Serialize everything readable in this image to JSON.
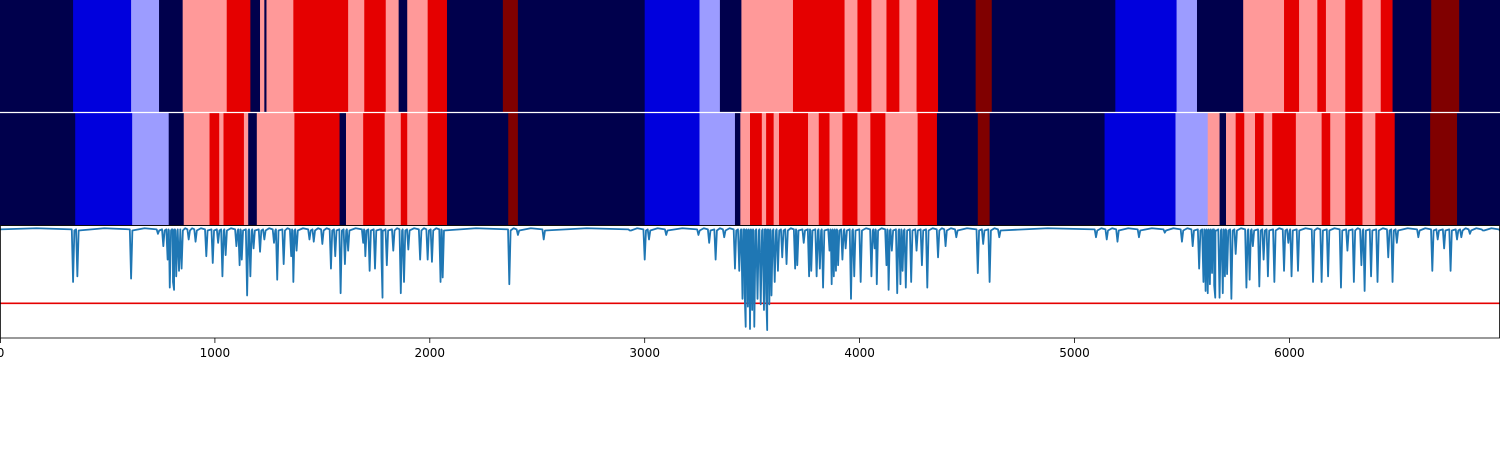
{
  "chart_data": {
    "type": "heatmap",
    "xlim": [
      0,
      6980
    ],
    "x_ticks": [
      0,
      1000,
      2000,
      3000,
      4000,
      5000,
      6000
    ],
    "x_tick_labels": [
      "0",
      "1000",
      "2000",
      "3000",
      "4000",
      "5000",
      "6000"
    ],
    "palette": {
      "0": "#00004c",
      "1": "#0000dd",
      "2": "#9c9cff",
      "3": "#ff9999",
      "4": "#e50000",
      "5": "#800000"
    },
    "segmentation_rows": [
      {
        "segments": [
          [
            0,
            340,
            0
          ],
          [
            340,
            610,
            1
          ],
          [
            610,
            740,
            2
          ],
          [
            740,
            850,
            0
          ],
          [
            850,
            1055,
            3
          ],
          [
            1055,
            1165,
            4
          ],
          [
            1165,
            1210,
            0
          ],
          [
            1210,
            1230,
            3
          ],
          [
            1230,
            1240,
            0
          ],
          [
            1240,
            1365,
            3
          ],
          [
            1365,
            1620,
            4
          ],
          [
            1620,
            1695,
            3
          ],
          [
            1695,
            1795,
            4
          ],
          [
            1795,
            1855,
            3
          ],
          [
            1855,
            1895,
            0
          ],
          [
            1895,
            1990,
            3
          ],
          [
            1990,
            2080,
            4
          ],
          [
            2080,
            2340,
            0
          ],
          [
            2340,
            2410,
            5
          ],
          [
            2410,
            3000,
            0
          ],
          [
            3000,
            3255,
            1
          ],
          [
            3255,
            3350,
            2
          ],
          [
            3350,
            3450,
            0
          ],
          [
            3450,
            3690,
            3
          ],
          [
            3690,
            3930,
            4
          ],
          [
            3930,
            3990,
            3
          ],
          [
            3990,
            4055,
            4
          ],
          [
            4055,
            4125,
            3
          ],
          [
            4125,
            4185,
            4
          ],
          [
            4185,
            4265,
            3
          ],
          [
            4265,
            4365,
            4
          ],
          [
            4365,
            4540,
            0
          ],
          [
            4540,
            4615,
            5
          ],
          [
            4615,
            5190,
            0
          ],
          [
            5190,
            5475,
            1
          ],
          [
            5475,
            5570,
            2
          ],
          [
            5570,
            5785,
            0
          ],
          [
            5785,
            5975,
            3
          ],
          [
            5975,
            6045,
            4
          ],
          [
            6045,
            6130,
            3
          ],
          [
            6130,
            6170,
            4
          ],
          [
            6170,
            6260,
            3
          ],
          [
            6260,
            6340,
            4
          ],
          [
            6340,
            6425,
            3
          ],
          [
            6425,
            6480,
            4
          ],
          [
            6480,
            6660,
            0
          ],
          [
            6660,
            6790,
            5
          ],
          [
            6790,
            6980,
            0
          ]
        ]
      },
      {
        "segments": [
          [
            0,
            350,
            0
          ],
          [
            350,
            615,
            1
          ],
          [
            615,
            785,
            2
          ],
          [
            785,
            855,
            0
          ],
          [
            855,
            975,
            3
          ],
          [
            975,
            1020,
            4
          ],
          [
            1020,
            1040,
            3
          ],
          [
            1040,
            1135,
            4
          ],
          [
            1135,
            1155,
            3
          ],
          [
            1155,
            1195,
            0
          ],
          [
            1195,
            1370,
            3
          ],
          [
            1370,
            1580,
            4
          ],
          [
            1580,
            1610,
            0
          ],
          [
            1610,
            1690,
            3
          ],
          [
            1690,
            1790,
            4
          ],
          [
            1790,
            1865,
            3
          ],
          [
            1865,
            1895,
            4
          ],
          [
            1895,
            1990,
            3
          ],
          [
            1990,
            2080,
            4
          ],
          [
            2080,
            2365,
            0
          ],
          [
            2365,
            2410,
            5
          ],
          [
            2410,
            3000,
            0
          ],
          [
            3000,
            3255,
            1
          ],
          [
            3255,
            3420,
            2
          ],
          [
            3420,
            3445,
            0
          ],
          [
            3445,
            3490,
            3
          ],
          [
            3490,
            3545,
            4
          ],
          [
            3545,
            3565,
            3
          ],
          [
            3565,
            3600,
            4
          ],
          [
            3600,
            3625,
            3
          ],
          [
            3625,
            3760,
            4
          ],
          [
            3760,
            3810,
            3
          ],
          [
            3810,
            3860,
            4
          ],
          [
            3860,
            3920,
            3
          ],
          [
            3920,
            3990,
            4
          ],
          [
            3990,
            4050,
            3
          ],
          [
            4050,
            4120,
            4
          ],
          [
            4120,
            4270,
            3
          ],
          [
            4270,
            4360,
            4
          ],
          [
            4360,
            4550,
            0
          ],
          [
            4550,
            4605,
            5
          ],
          [
            4605,
            5140,
            0
          ],
          [
            5140,
            5470,
            1
          ],
          [
            5470,
            5620,
            2
          ],
          [
            5620,
            5675,
            3
          ],
          [
            5675,
            5705,
            0
          ],
          [
            5705,
            5750,
            3
          ],
          [
            5750,
            5790,
            4
          ],
          [
            5790,
            5840,
            3
          ],
          [
            5840,
            5880,
            4
          ],
          [
            5880,
            5920,
            3
          ],
          [
            5920,
            6030,
            4
          ],
          [
            6030,
            6150,
            3
          ],
          [
            6150,
            6190,
            4
          ],
          [
            6190,
            6260,
            3
          ],
          [
            6260,
            6340,
            4
          ],
          [
            6340,
            6400,
            3
          ],
          [
            6400,
            6490,
            4
          ],
          [
            6490,
            6655,
            0
          ],
          [
            6655,
            6780,
            5
          ],
          [
            6780,
            6980,
            0
          ]
        ]
      }
    ],
    "line": {
      "color": "#1f77b4",
      "ylim": [
        0,
        1
      ],
      "threshold": 0.31,
      "threshold_color": "#e50000",
      "baseline_dips": [
        [
          340,
          0.5
        ],
        [
          360,
          0.55
        ],
        [
          610,
          0.53
        ],
        [
          735,
          0.93
        ],
        [
          760,
          0.82
        ],
        [
          780,
          0.7
        ],
        [
          790,
          0.45
        ],
        [
          805,
          0.5
        ],
        [
          810,
          0.43
        ],
        [
          820,
          0.55
        ],
        [
          833,
          0.6
        ],
        [
          845,
          0.62
        ],
        [
          878,
          0.88
        ],
        [
          910,
          0.86
        ],
        [
          960,
          0.73
        ],
        [
          990,
          0.67
        ],
        [
          1015,
          0.85
        ],
        [
          1035,
          0.55
        ],
        [
          1050,
          0.74
        ],
        [
          1100,
          0.82
        ],
        [
          1115,
          0.65
        ],
        [
          1125,
          0.7
        ],
        [
          1150,
          0.38
        ],
        [
          1165,
          0.55
        ],
        [
          1180,
          0.8
        ],
        [
          1210,
          0.77
        ],
        [
          1230,
          0.88
        ],
        [
          1275,
          0.85
        ],
        [
          1290,
          0.52
        ],
        [
          1320,
          0.66
        ],
        [
          1355,
          0.73
        ],
        [
          1365,
          0.5
        ],
        [
          1380,
          0.78
        ],
        [
          1440,
          0.88
        ],
        [
          1460,
          0.86
        ],
        [
          1500,
          0.84
        ],
        [
          1540,
          0.62
        ],
        [
          1560,
          0.73
        ],
        [
          1585,
          0.4
        ],
        [
          1605,
          0.66
        ],
        [
          1620,
          0.78
        ],
        [
          1690,
          0.85
        ],
        [
          1700,
          0.73
        ],
        [
          1720,
          0.6
        ],
        [
          1745,
          0.62
        ],
        [
          1775,
          0.72
        ],
        [
          1780,
          0.36
        ],
        [
          1800,
          0.65
        ],
        [
          1830,
          0.78
        ],
        [
          1865,
          0.4
        ],
        [
          1880,
          0.5
        ],
        [
          1900,
          0.79
        ],
        [
          1955,
          0.7
        ],
        [
          1990,
          0.7
        ],
        [
          2010,
          0.68
        ],
        [
          2050,
          0.5
        ],
        [
          2060,
          0.54
        ],
        [
          2370,
          0.48
        ],
        [
          2410,
          0.92
        ],
        [
          2530,
          0.88
        ],
        [
          2930,
          0.96
        ],
        [
          3000,
          0.7
        ],
        [
          3020,
          0.88
        ],
        [
          3100,
          0.92
        ],
        [
          3250,
          0.92
        ],
        [
          3300,
          0.85
        ],
        [
          3330,
          0.7
        ],
        [
          3370,
          0.9
        ],
        [
          3420,
          0.62
        ],
        [
          3440,
          0.6
        ],
        [
          3455,
          0.35
        ],
        [
          3465,
          0.4
        ],
        [
          3470,
          0.1
        ],
        [
          3480,
          0.28
        ],
        [
          3490,
          0.08
        ],
        [
          3500,
          0.25
        ],
        [
          3510,
          0.1
        ],
        [
          3525,
          0.35
        ],
        [
          3540,
          0.3
        ],
        [
          3555,
          0.25
        ],
        [
          3565,
          0.4
        ],
        [
          3570,
          0.07
        ],
        [
          3580,
          0.3
        ],
        [
          3590,
          0.38
        ],
        [
          3605,
          0.5
        ],
        [
          3620,
          0.6
        ],
        [
          3640,
          0.72
        ],
        [
          3660,
          0.66
        ],
        [
          3700,
          0.62
        ],
        [
          3710,
          0.65
        ],
        [
          3740,
          0.85
        ],
        [
          3765,
          0.55
        ],
        [
          3775,
          0.6
        ],
        [
          3800,
          0.55
        ],
        [
          3815,
          0.62
        ],
        [
          3830,
          0.45
        ],
        [
          3860,
          0.78
        ],
        [
          3870,
          0.48
        ],
        [
          3880,
          0.55
        ],
        [
          3890,
          0.6
        ],
        [
          3900,
          0.65
        ],
        [
          3920,
          0.7
        ],
        [
          3935,
          0.8
        ],
        [
          3960,
          0.35
        ],
        [
          3975,
          0.55
        ],
        [
          4005,
          0.5
        ],
        [
          4055,
          0.55
        ],
        [
          4070,
          0.8
        ],
        [
          4080,
          0.48
        ],
        [
          4125,
          0.65
        ],
        [
          4135,
          0.43
        ],
        [
          4150,
          0.78
        ],
        [
          4175,
          0.4
        ],
        [
          4190,
          0.48
        ],
        [
          4200,
          0.6
        ],
        [
          4215,
          0.45
        ],
        [
          4240,
          0.5
        ],
        [
          4265,
          0.78
        ],
        [
          4290,
          0.65
        ],
        [
          4315,
          0.45
        ],
        [
          4365,
          0.72
        ],
        [
          4400,
          0.82
        ],
        [
          4450,
          0.9
        ],
        [
          4550,
          0.58
        ],
        [
          4575,
          0.84
        ],
        [
          4605,
          0.5
        ],
        [
          4650,
          0.9
        ],
        [
          5100,
          0.9
        ],
        [
          5150,
          0.88
        ],
        [
          5200,
          0.86
        ],
        [
          5300,
          0.9
        ],
        [
          5420,
          0.94
        ],
        [
          5500,
          0.86
        ],
        [
          5550,
          0.82
        ],
        [
          5580,
          0.62
        ],
        [
          5600,
          0.5
        ],
        [
          5610,
          0.42
        ],
        [
          5620,
          0.4
        ],
        [
          5630,
          0.48
        ],
        [
          5640,
          0.58
        ],
        [
          5650,
          0.47
        ],
        [
          5655,
          0.36
        ],
        [
          5675,
          0.36
        ],
        [
          5690,
          0.4
        ],
        [
          5700,
          0.55
        ],
        [
          5710,
          0.57
        ],
        [
          5730,
          0.35
        ],
        [
          5750,
          0.75
        ],
        [
          5800,
          0.45
        ],
        [
          5815,
          0.52
        ],
        [
          5830,
          0.82
        ],
        [
          5860,
          0.46
        ],
        [
          5880,
          0.7
        ],
        [
          5900,
          0.55
        ],
        [
          5930,
          0.5
        ],
        [
          5975,
          0.6
        ],
        [
          5995,
          0.85
        ],
        [
          6010,
          0.55
        ],
        [
          6040,
          0.6
        ],
        [
          6110,
          0.5
        ],
        [
          6150,
          0.5
        ],
        [
          6180,
          0.55
        ],
        [
          6240,
          0.45
        ],
        [
          6270,
          0.78
        ],
        [
          6300,
          0.5
        ],
        [
          6335,
          0.65
        ],
        [
          6350,
          0.42
        ],
        [
          6380,
          0.55
        ],
        [
          6410,
          0.5
        ],
        [
          6460,
          0.72
        ],
        [
          6480,
          0.5
        ],
        [
          6500,
          0.85
        ],
        [
          6600,
          0.9
        ],
        [
          6665,
          0.6
        ],
        [
          6690,
          0.88
        ],
        [
          6720,
          0.8
        ],
        [
          6750,
          0.6
        ],
        [
          6780,
          0.88
        ],
        [
          6800,
          0.9
        ],
        [
          6840,
          0.93
        ],
        [
          6900,
          0.96
        ],
        [
          6980,
          0.96
        ]
      ]
    }
  }
}
